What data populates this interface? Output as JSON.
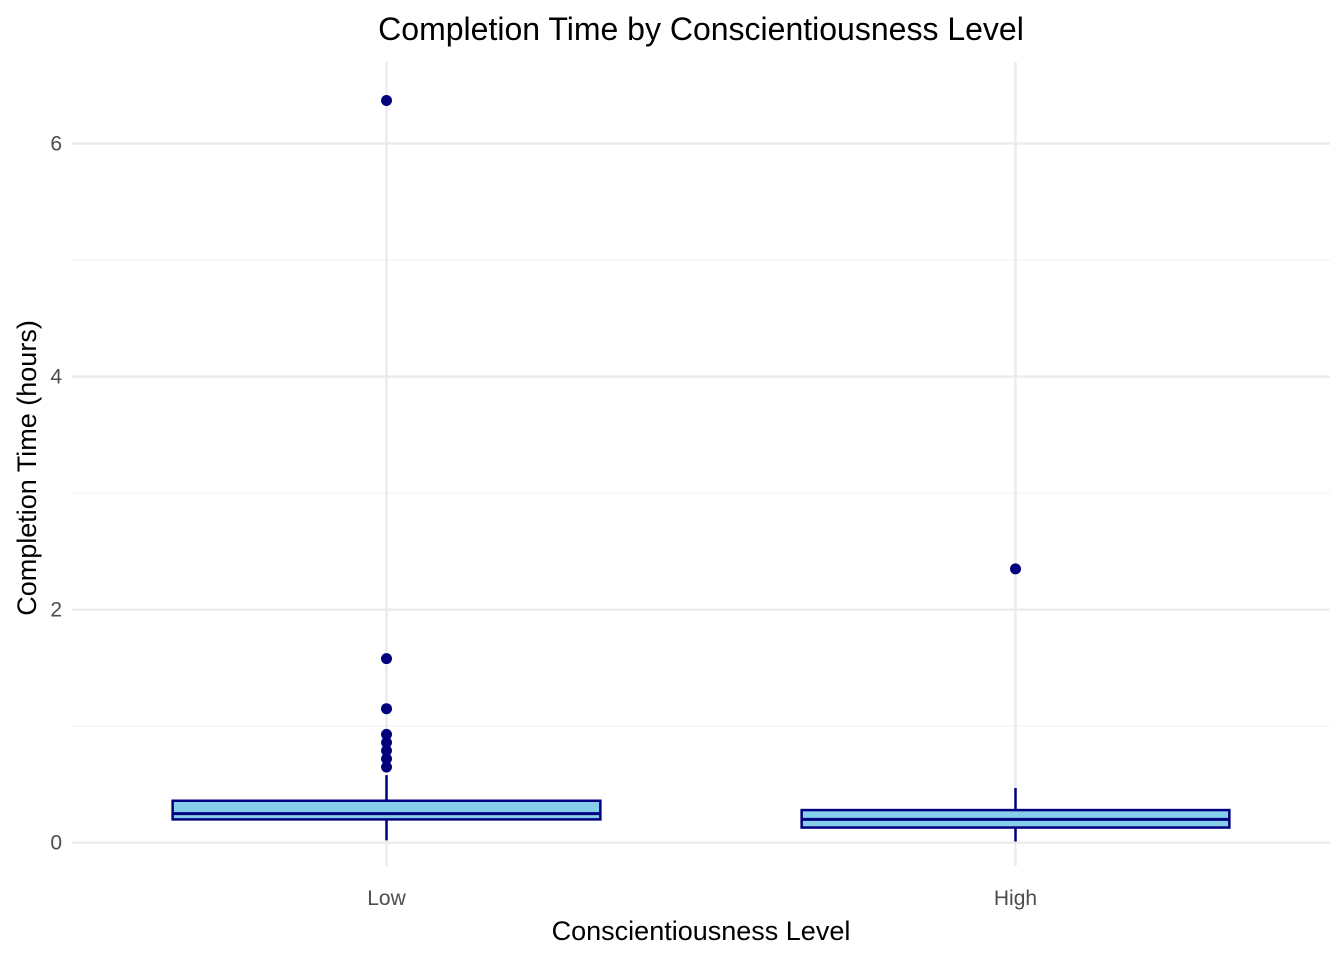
{
  "chart_data": {
    "type": "box",
    "title": "Completion Time by Conscientiousness Level",
    "xlabel": "Conscientiousness Level",
    "ylabel": "Completion Time (hours)",
    "categories": [
      "Low",
      "High"
    ],
    "ylim": [
      -0.2,
      6.7
    ],
    "yticks": [
      0,
      2,
      4,
      6
    ],
    "y_minor_ticks": [
      1,
      3,
      5
    ],
    "grid": true,
    "legend": "none",
    "colors": {
      "box_fill": "#87ceeb",
      "box_stroke": "#00007f",
      "outlier": "#00007f",
      "grid_major": "#ebebeb",
      "grid_minor": "#f2f2f2"
    },
    "boxes": [
      {
        "category": "Low",
        "whisker_low": 0.02,
        "q1": 0.2,
        "median": 0.25,
        "q3": 0.36,
        "whisker_high": 0.58,
        "outliers": [
          6.37,
          1.58,
          1.15,
          0.93,
          0.86,
          0.79,
          0.72,
          0.65
        ]
      },
      {
        "category": "High",
        "whisker_low": 0.01,
        "q1": 0.13,
        "median": 0.2,
        "q3": 0.28,
        "whisker_high": 0.47,
        "outliers": [
          2.35
        ]
      }
    ]
  }
}
